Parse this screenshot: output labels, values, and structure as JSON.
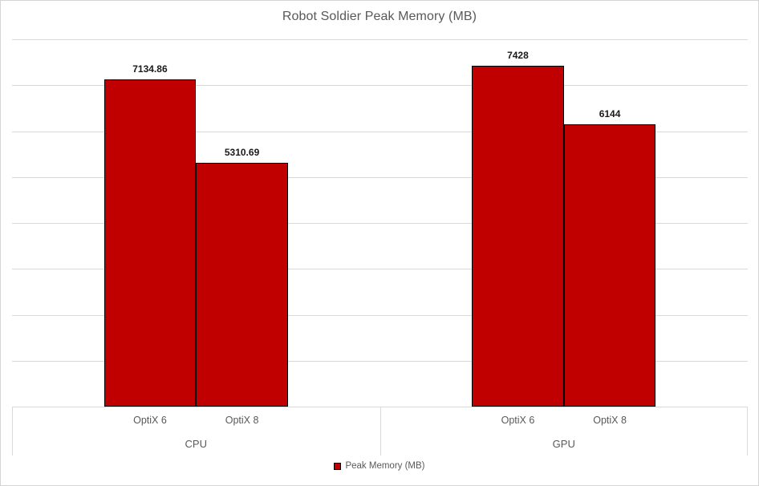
{
  "colors": {
    "accent": "#c00000",
    "bar_border": "#000000",
    "grid": "#d9d9d9",
    "muted_text": "#595959",
    "value_label_text": "#1a1a1a"
  },
  "chart_data": {
    "type": "bar",
    "title": "Robot Soldier Peak Memory (MB)",
    "series_name": "Peak Memory (MB)",
    "bar_color": "#c00000",
    "ylim": [
      0,
      8000
    ],
    "gridline_step": 1000,
    "grid": true,
    "y_axis_tick_labels": "hidden",
    "legend": {
      "position": "bottom",
      "label": "Peak Memory (MB)"
    },
    "groups": [
      {
        "label": "CPU",
        "categories": [
          "OptiX 6",
          "OptiX 8"
        ],
        "values": [
          7134.86,
          5310.69
        ],
        "value_labels": [
          "7134.86",
          "5310.69"
        ]
      },
      {
        "label": "GPU",
        "categories": [
          "OptiX 6",
          "OptiX 8"
        ],
        "values": [
          7428,
          6144
        ],
        "value_labels": [
          "7428",
          "6144"
        ]
      }
    ]
  }
}
